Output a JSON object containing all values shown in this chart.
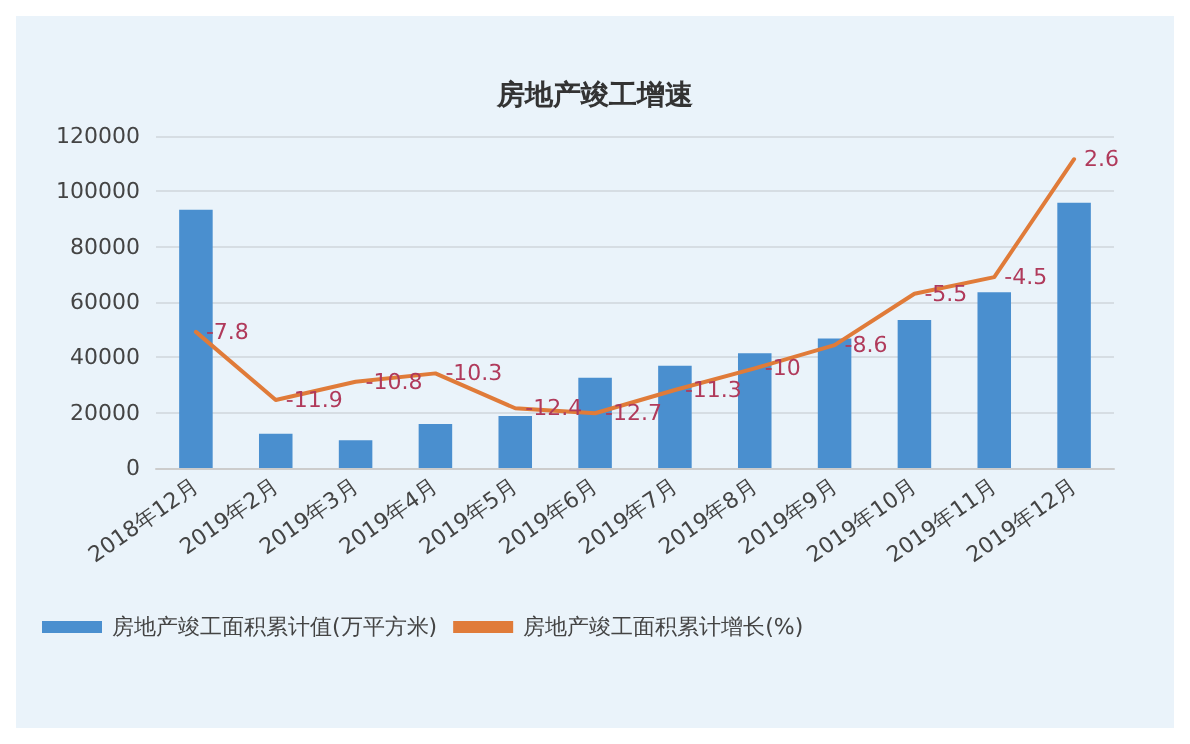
{
  "chart_data": {
    "type": "bar",
    "title": "房地产竣工增速",
    "categories": [
      "2018年12月",
      "2019年2月",
      "2019年3月",
      "2019年4月",
      "2019年5月",
      "2019年6月",
      "2019年7月",
      "2019年8月",
      "2019年9月",
      "2019年10月",
      "2019年11月",
      "2019年12月"
    ],
    "series": [
      {
        "name": "房地产竣工面积累计值(万平方米)",
        "color": "#4a8fcf",
        "values": [
          93300,
          12400,
          10000,
          15900,
          18800,
          32600,
          37000,
          41500,
          46800,
          53500,
          63500,
          95900
        ]
      },
      {
        "name": "房地产竣工面积累计增长(%)",
        "type": "line",
        "axis": "y2",
        "color": "#e07b39",
        "marker": "none",
        "line_style": "solid",
        "values": [
          -7.8,
          -11.9,
          -10.8,
          -10.3,
          -12.4,
          -12.7,
          -11.3,
          -10,
          -8.6,
          -5.5,
          -4.5,
          2.6
        ],
        "value_labels": [
          "-7.8",
          "-11.9",
          "-10.8",
          "-10.3",
          "-12.4",
          "-12.7",
          "-11.3",
          "-10",
          "-8.6",
          "-5.5",
          "-4.5",
          "2.6"
        ]
      }
    ],
    "ylim": [
      0,
      120000
    ],
    "yticks": [
      0,
      20000,
      40000,
      60000,
      80000,
      100000,
      120000
    ],
    "grid": "y",
    "legend": "bottom"
  }
}
